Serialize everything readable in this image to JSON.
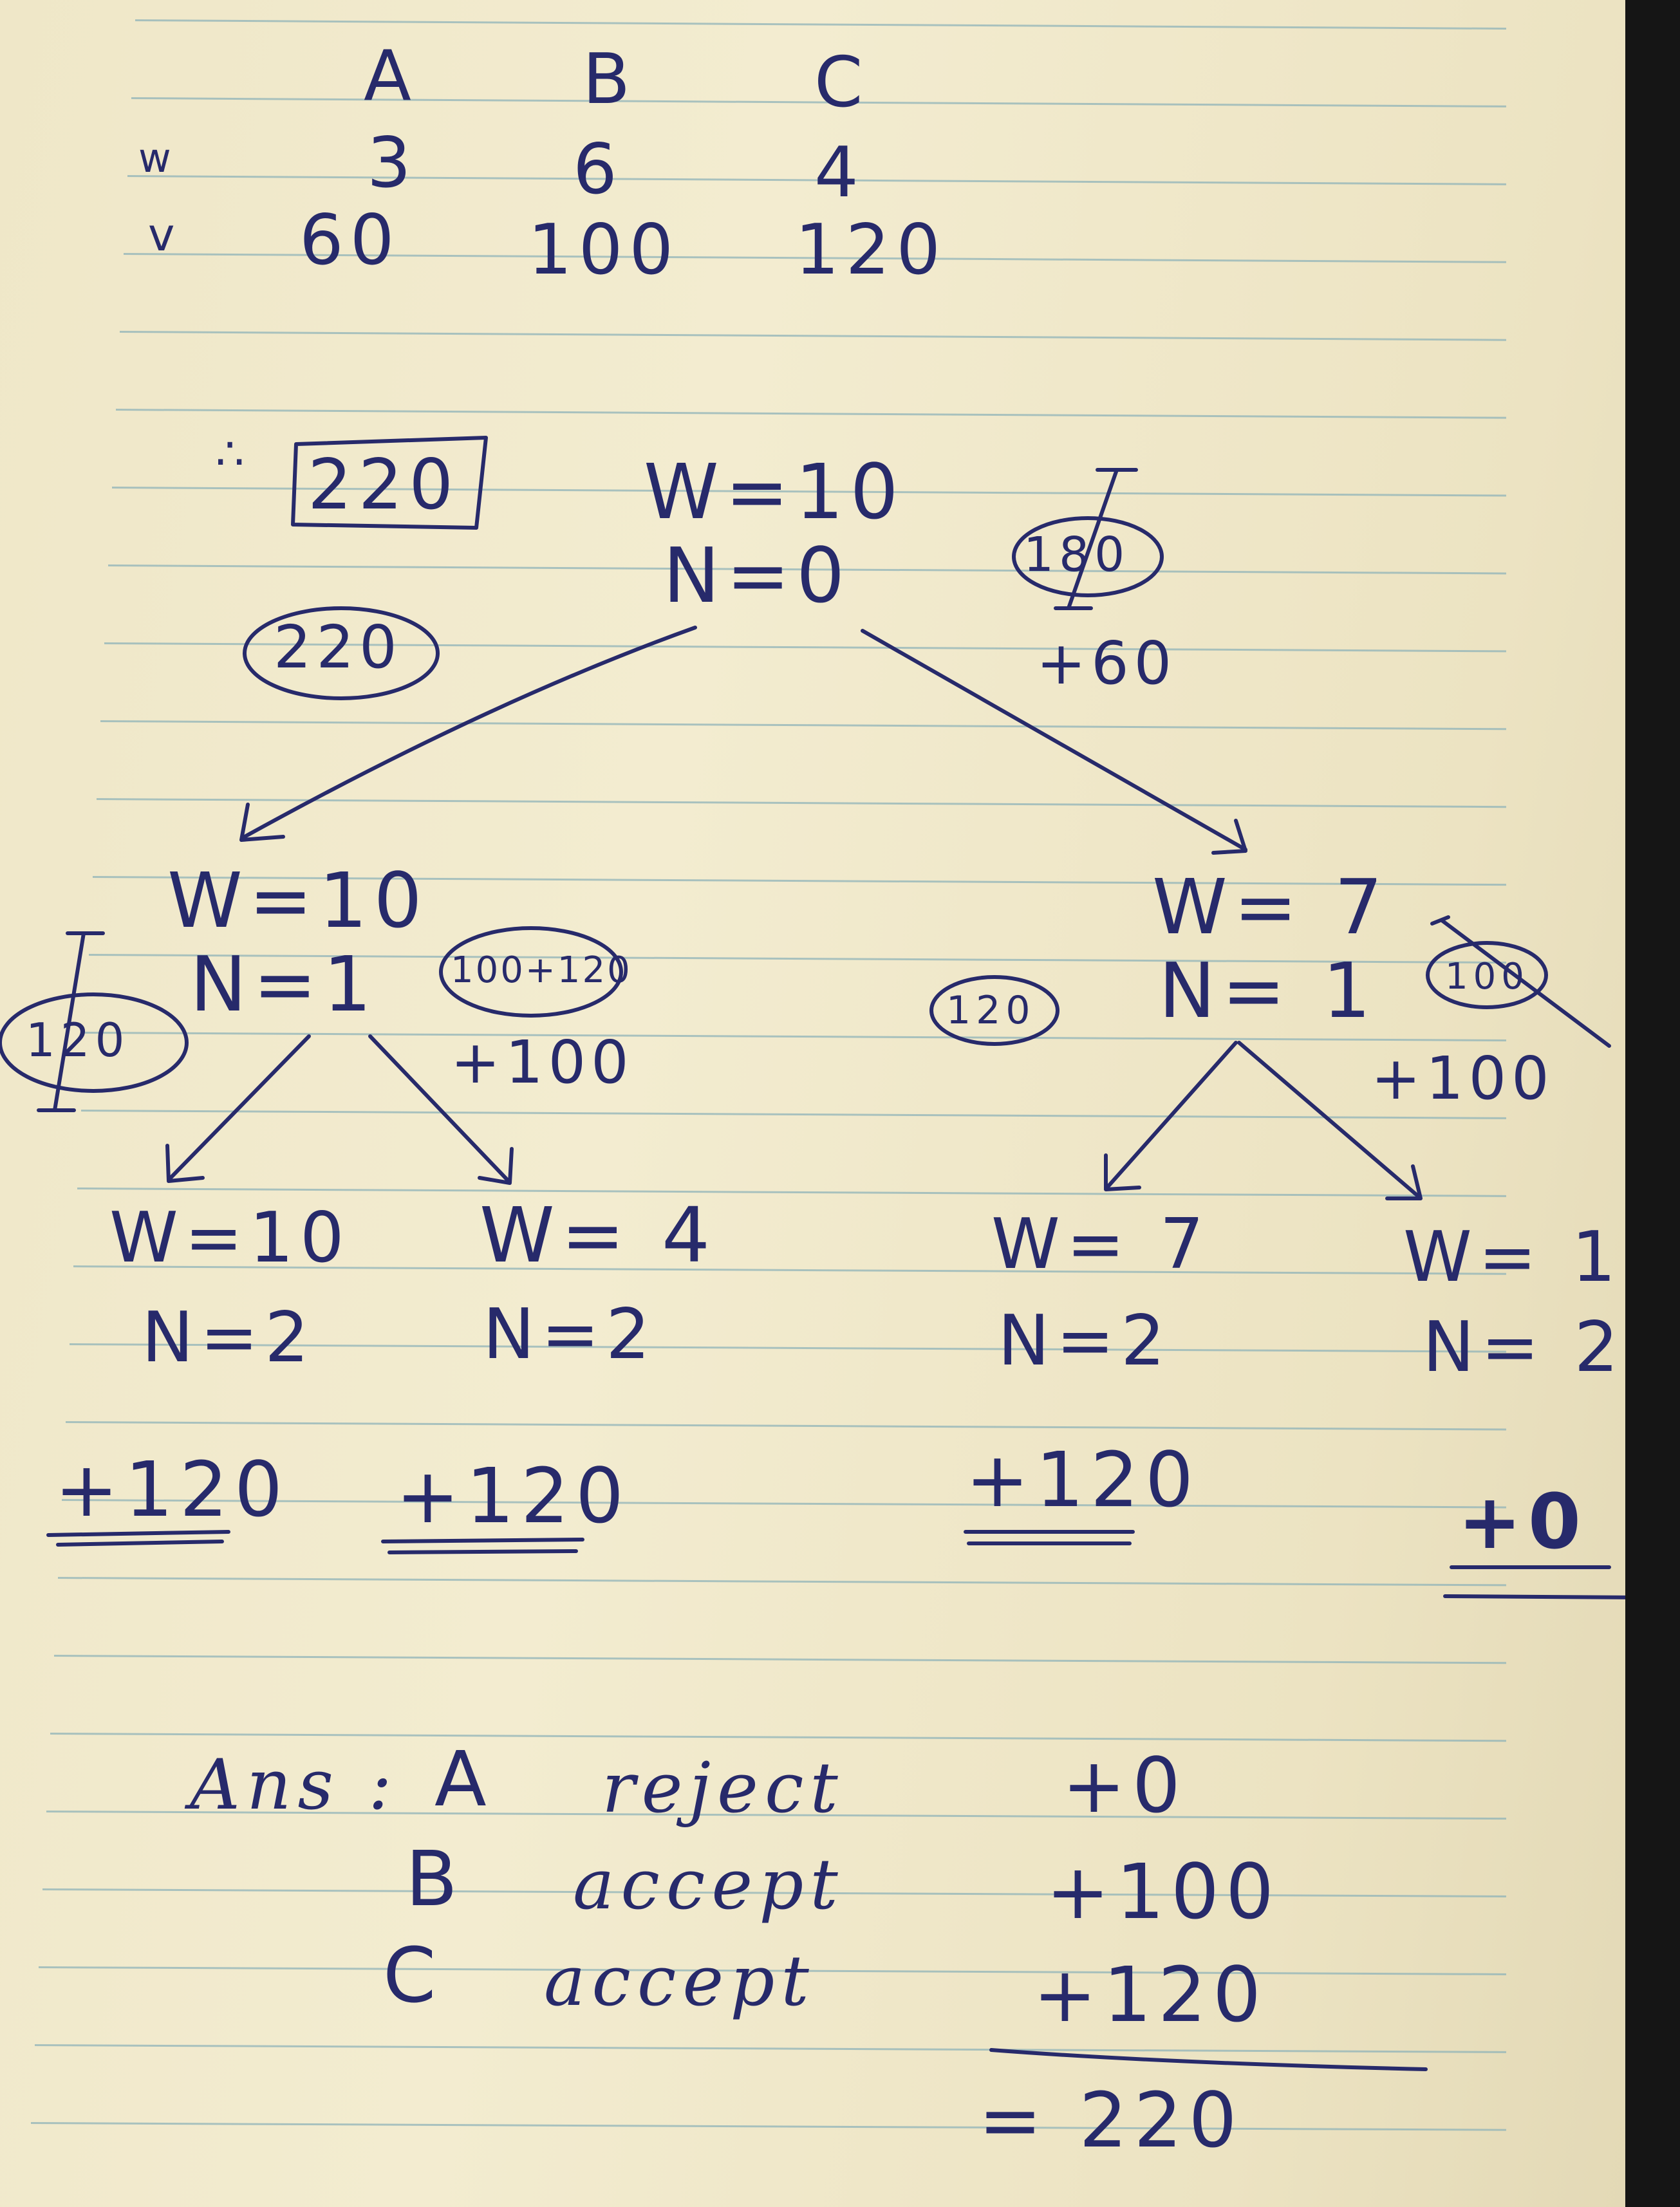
{
  "table": {
    "headers": [
      "A",
      "B",
      "C"
    ],
    "rows": [
      {
        "label": "w",
        "values": [
          "3",
          "6",
          "4"
        ]
      },
      {
        "label": "v",
        "values": [
          "60",
          "100",
          "120"
        ]
      }
    ]
  },
  "result": {
    "therefore": "∴",
    "value": "220"
  },
  "tree": {
    "root": {
      "w": "W=10",
      "n": "N=0",
      "bound_left": "220",
      "bound_right": "180",
      "edge_right": "+60"
    },
    "left": {
      "w": "W=10",
      "n": "N=1",
      "bound_left": "120",
      "bound_right": "100+120",
      "edge_right": "+100"
    },
    "right": {
      "w": "W= 7",
      "n": "N= 1",
      "bound_left": "120",
      "bound_right": "100",
      "edge_right": "+100"
    },
    "leaves": [
      {
        "w": "W=10",
        "n": "N=2",
        "value": "+120"
      },
      {
        "w": "W= 4",
        "n": "N=2",
        "value": "+120"
      },
      {
        "w": "W= 7",
        "n": "N=2",
        "value": "+120"
      },
      {
        "w": "W= 1",
        "n": "N= 2",
        "value": "+0"
      }
    ]
  },
  "answer": {
    "label": "Ans :",
    "rows": [
      {
        "item": "A",
        "decision": "reject",
        "value": "+0"
      },
      {
        "item": "B",
        "decision": "accept",
        "value": "+100"
      },
      {
        "item": "C",
        "decision": "accept",
        "value": "+120"
      }
    ],
    "total": "= 220"
  },
  "colors": {
    "ink": "#272a6b",
    "rule": "#8fb3b8",
    "paper": "#efe7c8"
  }
}
